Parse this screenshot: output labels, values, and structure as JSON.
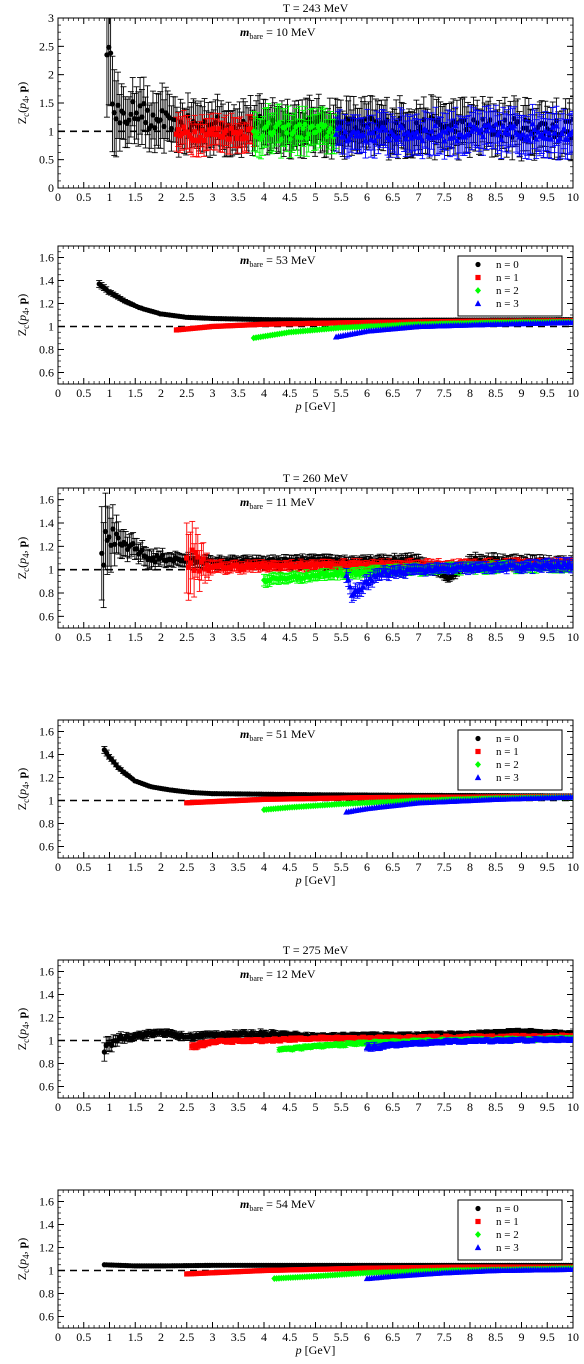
{
  "figure": {
    "xlabel_html": "p [GeV]",
    "ylabel": "Zc(p4, p)",
    "x_ticks": [
      "0",
      "0.5",
      "1",
      "1.5",
      "2",
      "2.5",
      "3",
      "3.5",
      "4",
      "4.5",
      "5",
      "5.5",
      "6",
      "6.5",
      "7",
      "7.5",
      "8",
      "8.5",
      "9",
      "9.5",
      "10"
    ]
  },
  "legend_entries": [
    {
      "label": "n = 0",
      "color": "#000000",
      "marker": "circle"
    },
    {
      "label": "n = 1",
      "color": "#ff0000",
      "marker": "square"
    },
    {
      "label": "n = 2",
      "color": "#00ff00",
      "marker": "diamond"
    },
    {
      "label": "n = 3",
      "color": "#0000ff",
      "marker": "triangle"
    }
  ],
  "chart_data": [
    {
      "type": "scatter",
      "title": "T = 243 MeV",
      "annotation": "m_bare = 10 MeV",
      "annotation_value": "= 10 MeV",
      "xlabel": "",
      "ylabel": "Zc(p4, p)",
      "xlim": [
        0,
        10
      ],
      "ylim": [
        0,
        3
      ],
      "y_ticks": [
        "0",
        "0.5",
        "1",
        "1.5",
        "2",
        "2.5",
        "3"
      ],
      "reference_line": 1.0,
      "legend": false,
      "xlabel_shown": false,
      "series": [
        {
          "n": 0,
          "x": [
            0.95,
            1.2,
            1.4,
            1.6,
            1.8,
            2.0,
            2.2,
            2.4
          ],
          "y": [
            2.35,
            1.15,
            1.3,
            1.45,
            1.1,
            1.2,
            1.05,
            1.1
          ],
          "err": [
            1.1,
            0.5,
            0.4,
            0.5,
            0.4,
            0.5,
            0.4,
            0.4
          ],
          "x_end": 10,
          "y_end": 1.05,
          "err_end": 0.4
        },
        {
          "n": 1,
          "x": [
            2.3,
            3.8
          ],
          "y": [
            0.95,
            0.98
          ],
          "err": [
            0.3,
            0.25
          ]
        },
        {
          "n": 2,
          "x": [
            3.8,
            5.4
          ],
          "y": [
            1.0,
            1.0
          ],
          "err": [
            0.35,
            0.3
          ]
        },
        {
          "n": 3,
          "x": [
            5.4,
            10.0
          ],
          "y": [
            0.95,
            1.0
          ],
          "err": [
            0.3,
            0.35
          ]
        }
      ]
    },
    {
      "type": "scatter",
      "title": "",
      "annotation": "m_bare = 53 MeV",
      "annotation_value": "= 53 MeV",
      "xlabel": "p [GeV]",
      "ylabel": "Zc(p4, p)",
      "xlim": [
        0,
        10
      ],
      "ylim": [
        0.5,
        1.7
      ],
      "y_ticks": [
        "0.6",
        "0.8",
        "1",
        "1.2",
        "1.4",
        "1.6"
      ],
      "reference_line": 1.0,
      "legend": true,
      "xlabel_shown": true,
      "series": [
        {
          "n": 0,
          "x": [
            0.8,
            1.0,
            1.3,
            1.6,
            2.0,
            2.5,
            3.0,
            4.0,
            5.0,
            7.0,
            10.0
          ],
          "y": [
            1.37,
            1.3,
            1.22,
            1.16,
            1.11,
            1.08,
            1.07,
            1.06,
            1.055,
            1.055,
            1.06
          ],
          "err": [
            0.03,
            0.02,
            0.015,
            0.01,
            0.01,
            0.01,
            0.01,
            0.01,
            0.01,
            0.01,
            0.01
          ]
        },
        {
          "n": 1,
          "x": [
            2.3,
            3.0,
            4.0,
            6.0,
            8.0,
            10.0
          ],
          "y": [
            0.97,
            1.0,
            1.02,
            1.035,
            1.045,
            1.05
          ],
          "err": [
            0.01,
            0.01,
            0.01,
            0.01,
            0.01,
            0.01
          ]
        },
        {
          "n": 2,
          "x": [
            3.8,
            4.5,
            5.5,
            7.0,
            8.5,
            10.0
          ],
          "y": [
            0.9,
            0.95,
            0.99,
            1.02,
            1.035,
            1.04
          ],
          "err": [
            0.01,
            0.01,
            0.01,
            0.01,
            0.01,
            0.01
          ]
        },
        {
          "n": 3,
          "x": [
            5.4,
            6.0,
            7.0,
            8.5,
            10.0
          ],
          "y": [
            0.91,
            0.96,
            1.0,
            1.02,
            1.035
          ],
          "err": [
            0.01,
            0.01,
            0.01,
            0.01,
            0.01
          ]
        }
      ]
    },
    {
      "type": "scatter",
      "title": "T = 260 MeV",
      "annotation": "m_bare = 11 MeV",
      "annotation_value": "= 11 MeV",
      "xlabel": "",
      "ylabel": "Zc(p4, p)",
      "xlim": [
        0,
        10
      ],
      "ylim": [
        0.5,
        1.7
      ],
      "y_ticks": [
        "0.6",
        "0.8",
        "1",
        "1.2",
        "1.4",
        "1.6"
      ],
      "reference_line": 1.0,
      "legend": false,
      "xlabel_shown": false,
      "series": [
        {
          "n": 0,
          "x": [
            0.85,
            1.0,
            1.2,
            1.4,
            1.6,
            1.8,
            2.0,
            2.5,
            3.0,
            4.0,
            5.0,
            6.0,
            7.0,
            7.6,
            8.0,
            9.0,
            10.0
          ],
          "y": [
            1.14,
            1.28,
            1.22,
            1.2,
            1.15,
            1.08,
            1.1,
            1.08,
            1.07,
            1.07,
            1.08,
            1.07,
            1.08,
            0.93,
            1.08,
            1.07,
            1.05
          ],
          "err": [
            0.4,
            0.25,
            0.12,
            0.1,
            0.08,
            0.08,
            0.06,
            0.05,
            0.04,
            0.04,
            0.04,
            0.04,
            0.05,
            0.03,
            0.05,
            0.05,
            0.05
          ]
        },
        {
          "n": 1,
          "x": [
            2.5,
            3.0,
            4.0,
            6.0,
            8.0,
            10.0
          ],
          "y": [
            1.1,
            1.02,
            1.03,
            1.04,
            1.04,
            1.05
          ],
          "err": [
            0.3,
            0.05,
            0.04,
            0.04,
            0.04,
            0.04
          ]
        },
        {
          "n": 2,
          "x": [
            4.0,
            4.5,
            5.5,
            7.0,
            8.5,
            10.0
          ],
          "y": [
            0.91,
            0.93,
            0.97,
            1.0,
            1.02,
            1.03
          ],
          "err": [
            0.05,
            0.04,
            0.04,
            0.04,
            0.04,
            0.04
          ]
        },
        {
          "n": 3,
          "x": [
            5.6,
            5.7,
            6.2,
            7.0,
            8.5,
            10.0
          ],
          "y": [
            0.95,
            0.78,
            0.96,
            1.0,
            1.02,
            1.04
          ],
          "err": [
            0.06,
            0.06,
            0.05,
            0.04,
            0.04,
            0.05
          ]
        }
      ]
    },
    {
      "type": "scatter",
      "title": "",
      "annotation": "m_bare = 51 MeV",
      "annotation_value": "= 51 MeV",
      "xlabel": "p [GeV]",
      "ylabel": "Zc(p4, p)",
      "xlim": [
        0,
        10
      ],
      "ylim": [
        0.5,
        1.7
      ],
      "y_ticks": [
        "0.6",
        "0.8",
        "1",
        "1.2",
        "1.4",
        "1.6"
      ],
      "reference_line": 1.0,
      "legend": true,
      "xlabel_shown": true,
      "series": [
        {
          "n": 0,
          "x": [
            0.9,
            1.0,
            1.2,
            1.5,
            1.8,
            2.2,
            2.6,
            3.0,
            4.0,
            5.0,
            7.0,
            10.0
          ],
          "y": [
            1.44,
            1.38,
            1.27,
            1.17,
            1.12,
            1.09,
            1.07,
            1.06,
            1.055,
            1.05,
            1.045,
            1.04
          ],
          "err": [
            0.03,
            0.02,
            0.015,
            0.01,
            0.01,
            0.01,
            0.01,
            0.01,
            0.01,
            0.01,
            0.01,
            0.01
          ]
        },
        {
          "n": 1,
          "x": [
            2.5,
            3.0,
            4.0,
            6.0,
            8.0,
            10.0
          ],
          "y": [
            0.98,
            0.99,
            1.01,
            1.025,
            1.03,
            1.035
          ],
          "err": [
            0.01,
            0.01,
            0.01,
            0.01,
            0.01,
            0.01
          ]
        },
        {
          "n": 2,
          "x": [
            4.0,
            4.5,
            5.5,
            7.0,
            8.5,
            10.0
          ],
          "y": [
            0.92,
            0.94,
            0.97,
            1.0,
            1.02,
            1.03
          ],
          "err": [
            0.01,
            0.01,
            0.01,
            0.01,
            0.01,
            0.01
          ]
        },
        {
          "n": 3,
          "x": [
            5.6,
            6.0,
            7.0,
            8.5,
            10.0
          ],
          "y": [
            0.9,
            0.93,
            0.98,
            1.01,
            1.03
          ],
          "err": [
            0.01,
            0.01,
            0.01,
            0.01,
            0.01
          ]
        }
      ]
    },
    {
      "type": "scatter",
      "title": "T = 275 MeV",
      "annotation": "m_bare = 12 MeV",
      "annotation_value": "= 12 MeV",
      "xlabel": "",
      "ylabel": "Zc(p4, p)",
      "xlim": [
        0,
        10
      ],
      "ylim": [
        0.5,
        1.7
      ],
      "y_ticks": [
        "0.6",
        "0.8",
        "1",
        "1.2",
        "1.4",
        "1.6"
      ],
      "reference_line": 1.0,
      "legend": false,
      "xlabel_shown": false,
      "series": [
        {
          "n": 0,
          "x": [
            0.9,
            1.0,
            1.2,
            1.5,
            2.0,
            2.5,
            3.0,
            3.5,
            4.0,
            5.0,
            6.0,
            7.0,
            8.0,
            9.0,
            10.0
          ],
          "y": [
            0.9,
            0.97,
            1.02,
            1.04,
            1.07,
            1.03,
            1.05,
            1.05,
            1.06,
            1.04,
            1.05,
            1.05,
            1.06,
            1.08,
            1.06
          ],
          "err": [
            0.08,
            0.06,
            0.04,
            0.03,
            0.03,
            0.03,
            0.03,
            0.03,
            0.03,
            0.02,
            0.02,
            0.02,
            0.02,
            0.02,
            0.02
          ]
        },
        {
          "n": 1,
          "x": [
            2.6,
            3.0,
            4.0,
            5.0,
            6.0,
            8.0,
            10.0
          ],
          "y": [
            0.95,
            0.99,
            1.0,
            1.02,
            1.02,
            1.03,
            1.04
          ],
          "err": [
            0.03,
            0.02,
            0.02,
            0.02,
            0.02,
            0.02,
            0.02
          ]
        },
        {
          "n": 2,
          "x": [
            4.3,
            5.0,
            6.0,
            7.5,
            9.0,
            10.0
          ],
          "y": [
            0.92,
            0.95,
            0.98,
            1.0,
            1.01,
            1.02
          ],
          "err": [
            0.02,
            0.02,
            0.02,
            0.02,
            0.02,
            0.02
          ]
        },
        {
          "n": 3,
          "x": [
            6.0,
            6.5,
            7.5,
            8.5,
            10.0
          ],
          "y": [
            0.94,
            0.96,
            0.99,
            1.0,
            1.01
          ],
          "err": [
            0.03,
            0.02,
            0.02,
            0.02,
            0.02
          ]
        }
      ]
    },
    {
      "type": "scatter",
      "title": "",
      "annotation": "m_bare = 54 MeV",
      "annotation_value": "= 54 MeV",
      "xlabel": "p [GeV]",
      "ylabel": "Zc(p4, p)",
      "xlim": [
        0,
        10
      ],
      "ylim": [
        0.5,
        1.7
      ],
      "y_ticks": [
        "0.6",
        "0.8",
        "1",
        "1.2",
        "1.4",
        "1.6"
      ],
      "reference_line": 1.0,
      "legend": true,
      "xlabel_shown": true,
      "series": [
        {
          "n": 0,
          "x": [
            0.9,
            1.5,
            2.0,
            3.0,
            4.0,
            6.0,
            8.0,
            10.0
          ],
          "y": [
            1.05,
            1.04,
            1.04,
            1.045,
            1.045,
            1.045,
            1.045,
            1.045
          ],
          "err": [
            0.01,
            0.01,
            0.01,
            0.01,
            0.01,
            0.01,
            0.01,
            0.01
          ]
        },
        {
          "n": 1,
          "x": [
            2.5,
            3.0,
            4.0,
            6.0,
            8.0,
            10.0
          ],
          "y": [
            0.97,
            0.98,
            1.0,
            1.02,
            1.03,
            1.03
          ],
          "err": [
            0.01,
            0.01,
            0.01,
            0.01,
            0.01,
            0.01
          ]
        },
        {
          "n": 2,
          "x": [
            4.2,
            5.0,
            6.0,
            7.5,
            9.0,
            10.0
          ],
          "y": [
            0.93,
            0.95,
            0.98,
            1.0,
            1.01,
            1.02
          ],
          "err": [
            0.01,
            0.01,
            0.01,
            0.01,
            0.01,
            0.01
          ]
        },
        {
          "n": 3,
          "x": [
            6.0,
            6.5,
            7.5,
            8.5,
            10.0
          ],
          "y": [
            0.93,
            0.95,
            0.98,
            1.0,
            1.01
          ],
          "err": [
            0.01,
            0.01,
            0.01,
            0.01,
            0.01
          ]
        }
      ]
    }
  ]
}
